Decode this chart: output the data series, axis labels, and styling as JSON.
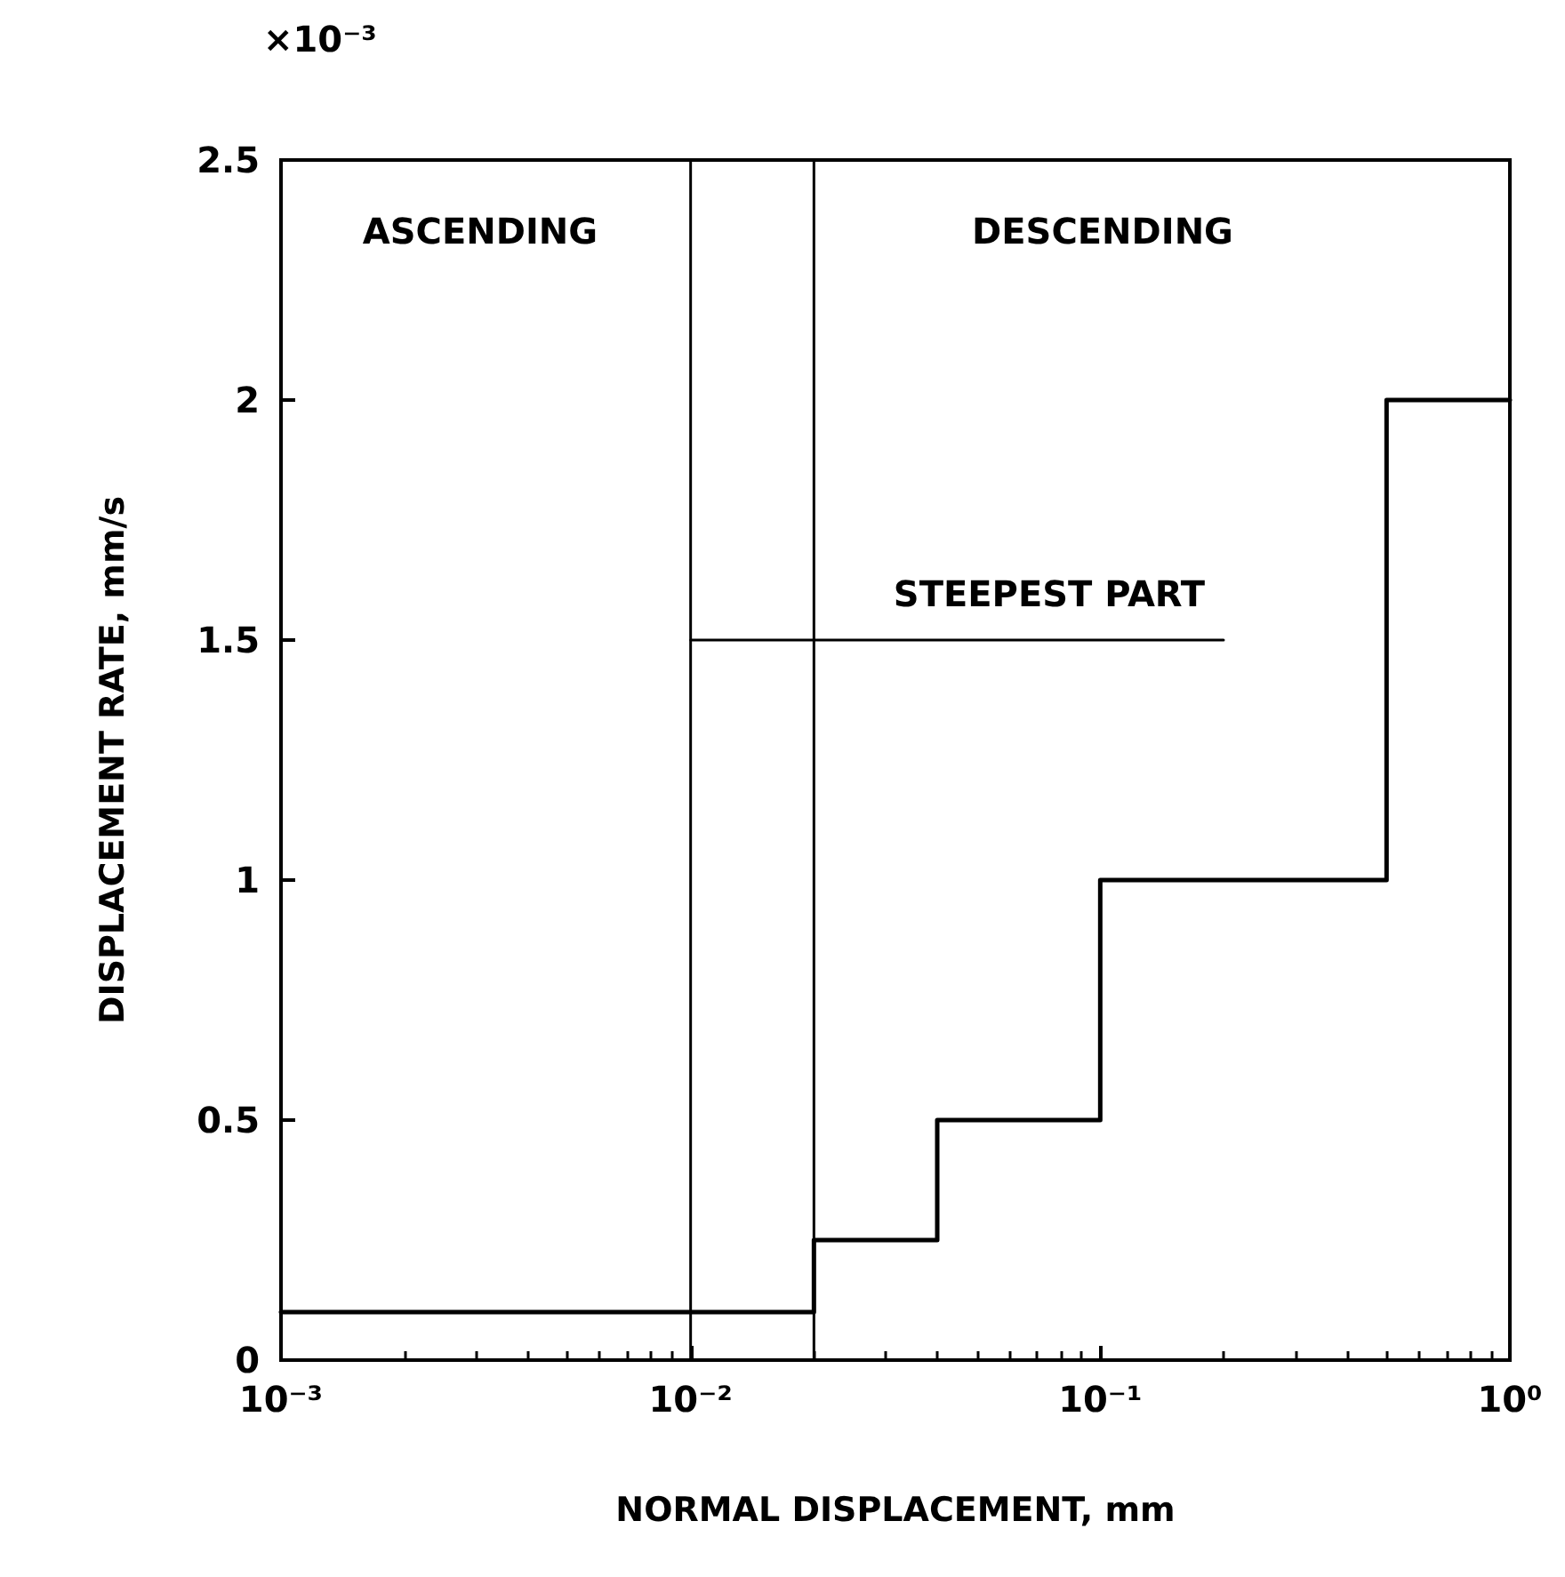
{
  "chart_data": {
    "type": "step",
    "xlabel": "NORMAL DISPLACEMENT, mm",
    "ylabel": "DISPLACEMENT RATE, mm/s",
    "log": "x",
    "grid": false,
    "marker": "none",
    "line_style": "solid",
    "xlim": [
      0.001,
      1
    ],
    "xticks": [
      {
        "value": 0.001,
        "label": "10⁻³"
      },
      {
        "value": 0.01,
        "label": "10⁻²"
      },
      {
        "value": 0.1,
        "label": "10⁻¹"
      },
      {
        "value": 1,
        "label": "10⁰"
      }
    ],
    "ylim": [
      0,
      2.5
    ],
    "yticks": [
      0,
      0.5,
      1,
      1.5,
      2,
      2.5
    ],
    "series": [
      {
        "color": "#000000",
        "x": [
          0.001,
          0.02,
          0.04,
          0.1,
          0.5,
          1
        ],
        "values": [
          0.1,
          0.25,
          0.5,
          1,
          2,
          2
        ]
      },
      {
        "type": "line",
        "color": "#000000",
        "x": [
          0.01,
          0.2
        ],
        "values": [
          1.5,
          1.5
        ]
      }
    ],
    "ref_lines": [
      {
        "axis": "x",
        "value": 0.01,
        "color": "#000000"
      },
      {
        "axis": "x",
        "value": 0.02,
        "color": "#000000"
      }
    ],
    "annotations": [
      "×10⁻³",
      "ASCENDING",
      "DESCENDING",
      "STEEPEST PART"
    ]
  }
}
